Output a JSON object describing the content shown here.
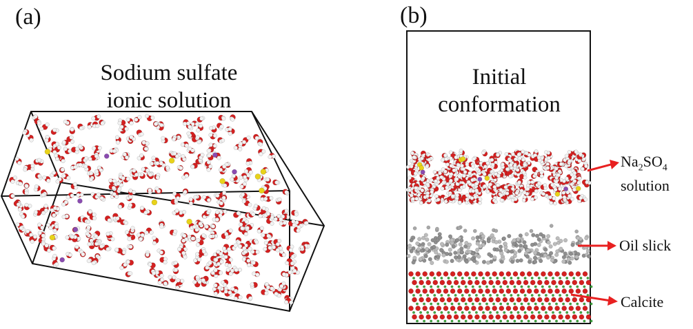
{
  "panel_a": {
    "label": "(a)",
    "title_line1": "Sodium sulfate",
    "title_line2": "ionic solution"
  },
  "panel_b": {
    "label": "(b)",
    "title_line1": "Initial",
    "title_line2": "conformation",
    "annotations": {
      "solution_formula_na": "Na",
      "solution_formula_sub2": "2",
      "solution_formula_so": "SO",
      "solution_formula_sub4": "4",
      "solution_word": "solution",
      "oil": "Oil slick",
      "calcite": "Calcite"
    }
  },
  "colors": {
    "oxygen": "#d42020",
    "hydrogen": "#f2f2f2",
    "sulfur": "#e8d21a",
    "sodium": "#8a4bb0",
    "carbon": "#8f8f8f",
    "calcium": "#3fa63f",
    "arrow": "#e82020",
    "box": "#111111"
  }
}
